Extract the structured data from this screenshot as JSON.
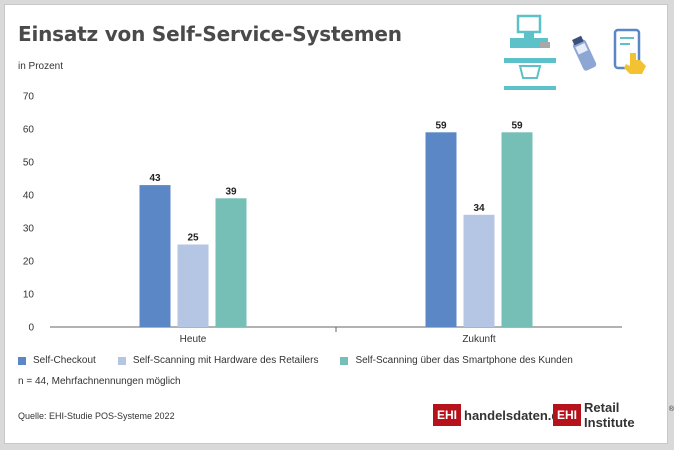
{
  "title": "Einsatz von Self-Service-Systemen",
  "unit": "in Prozent",
  "note": "n = 44, Mehrfachnennungen möglich",
  "source": "Quelle: EHI-Studie POS-Systeme 2022",
  "logos": {
    "left_box": "EHI",
    "left_text": "handelsdaten.de",
    "right_box": "EHI",
    "right_text": "Retail Institute",
    "right_mark": "®"
  },
  "icons": [
    "self-checkout-terminal-icon",
    "handheld-scanner-icon",
    "smartphone-tap-icon"
  ],
  "colors": {
    "self_checkout": "#5b87c6",
    "self_scanning_hardware": "#b4c6e4",
    "self_scanning_smartphone": "#76bfb6",
    "logo_red": "#b5121b"
  },
  "chart_data": {
    "type": "bar",
    "categories": [
      "Heute",
      "Zukunft"
    ],
    "series": [
      {
        "name": "Self-Checkout",
        "values": [
          43,
          59
        ],
        "color": "#5b87c6"
      },
      {
        "name": "Self-Scanning mit Hardware des Retailers",
        "values": [
          25,
          34
        ],
        "color": "#b4c6e4"
      },
      {
        "name": "Self-Scanning über das Smartphone des Kunden",
        "values": [
          39,
          59
        ],
        "color": "#76bfb6"
      }
    ],
    "title": "Einsatz von Self-Service-Systemen",
    "ylabel": "in Prozent",
    "ylim": [
      0,
      70
    ],
    "yticks": [
      0,
      10,
      20,
      30,
      40,
      50,
      60,
      70
    ],
    "grid": false,
    "legend": "bottom"
  }
}
